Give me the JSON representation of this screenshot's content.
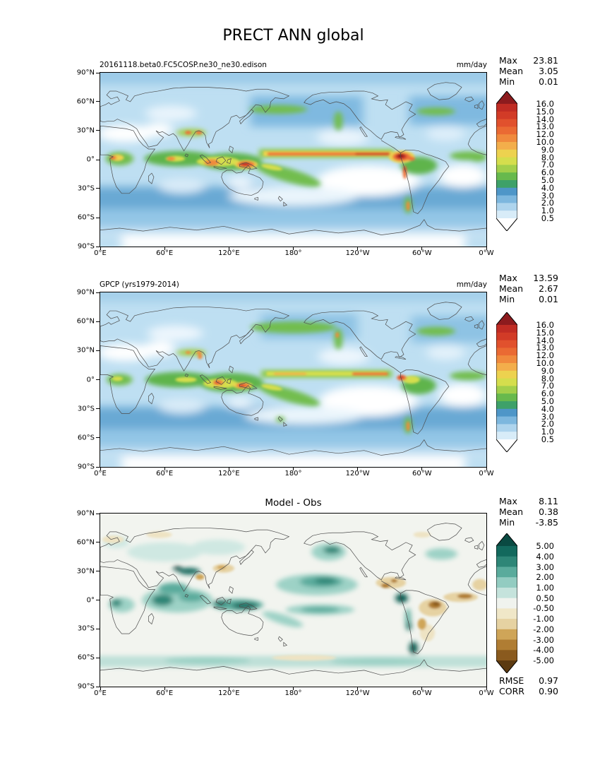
{
  "figure_title": "PRECT ANN global",
  "axes": {
    "lat_ticks": [
      "90°N",
      "60°N",
      "30°N",
      "0°",
      "30°S",
      "60°S",
      "90°S"
    ],
    "lon_ticks": [
      "0°E",
      "60°E",
      "120°E",
      "180°",
      "120°W",
      "60°W",
      "0°W"
    ]
  },
  "panels": [
    {
      "label": "20161118.beta0.FC5COSP.ne30_ne30.edison",
      "units": "mm/day",
      "stats": [
        {
          "label": "Max",
          "value": "23.81"
        },
        {
          "label": "Mean",
          "value": "3.05"
        },
        {
          "label": "Min",
          "value": "0.01"
        }
      ],
      "colorbar": {
        "levels": [
          "16.0",
          "15.0",
          "14.0",
          "13.0",
          "12.0",
          "10.0",
          "9.0",
          "8.0",
          "7.0",
          "6.0",
          "5.0",
          "4.0",
          "3.0",
          "2.0",
          "1.0",
          "0.5"
        ],
        "colors": [
          "#8d1b1e",
          "#c02c24",
          "#d23b27",
          "#e1512d",
          "#ea6a33",
          "#f08a3d",
          "#f3ae4b",
          "#edd24f",
          "#d5de4d",
          "#a3cf4b",
          "#67b94d",
          "#3ea169",
          "#4e96c8",
          "#7db7de",
          "#aed4ed",
          "#d8ecf8",
          "#ffffff"
        ]
      }
    },
    {
      "label": "GPCP (yrs1979-2014)",
      "units": "mm/day",
      "stats": [
        {
          "label": "Max",
          "value": "13.59"
        },
        {
          "label": "Mean",
          "value": "2.67"
        },
        {
          "label": "Min",
          "value": "0.01"
        }
      ],
      "colorbar": {
        "levels": [
          "16.0",
          "15.0",
          "14.0",
          "13.0",
          "12.0",
          "10.0",
          "9.0",
          "8.0",
          "7.0",
          "6.0",
          "5.0",
          "4.0",
          "3.0",
          "2.0",
          "1.0",
          "0.5"
        ],
        "colors": [
          "#8d1b1e",
          "#c02c24",
          "#d23b27",
          "#e1512d",
          "#ea6a33",
          "#f08a3d",
          "#f3ae4b",
          "#edd24f",
          "#d5de4d",
          "#a3cf4b",
          "#67b94d",
          "#3ea169",
          "#4e96c8",
          "#7db7de",
          "#aed4ed",
          "#d8ecf8",
          "#ffffff"
        ]
      }
    },
    {
      "title": "Model - Obs",
      "stats": [
        {
          "label": "Max",
          "value": "8.11"
        },
        {
          "label": "Mean",
          "value": "0.38"
        },
        {
          "label": "Min",
          "value": "-3.85"
        }
      ],
      "metrics": [
        {
          "label": "RMSE",
          "value": "0.97"
        },
        {
          "label": "CORR",
          "value": "0.90"
        }
      ],
      "colorbar": {
        "levels": [
          "5.00",
          "4.00",
          "3.00",
          "2.00",
          "1.00",
          "0.50",
          "-0.50",
          "-1.00",
          "-2.00",
          "-3.00",
          "-4.00",
          "-5.00"
        ],
        "colors": [
          "#0a4a42",
          "#13695d",
          "#2e8677",
          "#5aab9c",
          "#93ccc1",
          "#c5e3dc",
          "#f0f3ee",
          "#f0e7c8",
          "#e6d2a2",
          "#cfa558",
          "#b07d33",
          "#8a5a1e",
          "#5c3a10"
        ]
      }
    }
  ],
  "chart_data": [
    {
      "type": "heatmap",
      "subtype": "filled_contour_global_map",
      "panel": "top",
      "title": "20161118.beta0.FC5COSP.ne30_ne30.edison",
      "variable": "PRECT ANN global",
      "units": "mm/day",
      "projection": "equirectangular, Pacific-centered, lon 0E-360E left to right",
      "x_ticks": [
        "0°E",
        "60°E",
        "120°E",
        "180°",
        "120°W",
        "60°W",
        "0°W"
      ],
      "y_ticks": [
        "90°N",
        "60°N",
        "30°N",
        "0°",
        "30°S",
        "60°S",
        "90°S"
      ],
      "contour_levels": [
        0.5,
        1,
        2,
        3,
        4,
        5,
        6,
        7,
        8,
        9,
        10,
        12,
        13,
        14,
        15,
        16
      ],
      "colormap": "white-blue-green-yellow-orange-red, both ends extended (pointed colorbar)",
      "stats": {
        "Max": 23.81,
        "Mean": 3.05,
        "Min": 0.01
      },
      "notable_features": "Red/dark-red maxima along Pacific ITCZ, over New Guinea/Maritime Continent and NW South America (Colombia); green tropical rain belts in Indian Ocean, SPCZ, Amazon, Congo; white dry zones over subtropical eastern oceans, Sahara, Middle East and Antarctic interior"
    },
    {
      "type": "heatmap",
      "subtype": "filled_contour_global_map",
      "panel": "middle",
      "title": "GPCP (yrs1979-2014)",
      "variable": "PRECT ANN global observations",
      "units": "mm/day",
      "projection": "equirectangular, Pacific-centered, lon 0E-360E left to right",
      "x_ticks": [
        "0°E",
        "60°E",
        "120°E",
        "180°",
        "120°W",
        "60°W",
        "0°W"
      ],
      "y_ticks": [
        "90°N",
        "60°N",
        "30°N",
        "0°",
        "30°S",
        "60°S",
        "90°S"
      ],
      "contour_levels": [
        0.5,
        1,
        2,
        3,
        4,
        5,
        6,
        7,
        8,
        9,
        10,
        12,
        13,
        14,
        15,
        16
      ],
      "colormap": "white-blue-green-yellow-orange-red, both ends extended (pointed colorbar)",
      "stats": {
        "Max": 13.59,
        "Mean": 2.67,
        "Min": 0.01
      },
      "notable_features": "Same pattern as model but smoother and weaker: yellow/orange ITCZ, orange cores over Maritime Continent, small red spot near Colombia, broad green North Pacific storm track"
    },
    {
      "type": "heatmap",
      "subtype": "filled_contour_global_map_difference",
      "panel": "bottom",
      "title": "Model - Obs",
      "units": "mm/day",
      "projection": "equirectangular, Pacific-centered, lon 0E-360E left to right",
      "x_ticks": [
        "0°E",
        "60°E",
        "120°E",
        "180°",
        "120°W",
        "60°W",
        "0°W"
      ],
      "y_ticks": [
        "90°N",
        "60°N",
        "30°N",
        "0°",
        "30°S",
        "60°S",
        "90°S"
      ],
      "contour_levels": [
        -5,
        -4,
        -3,
        -2,
        -1,
        -0.5,
        0.5,
        1,
        2,
        3,
        4,
        5
      ],
      "colormap": "diverging brown (negative) to white to teal/dark-green (positive), both ends extended",
      "stats": {
        "Max": 8.11,
        "Mean": 0.38,
        "Min": -3.85
      },
      "metrics": {
        "RMSE": 0.97,
        "CORR": 0.9
      },
      "notable_features": "Positive (teal) bias over Indian Ocean, Himalaya, Maritime Continent, central Pacific, Andes/Colombia and Southern Ocean; negative (brown) bias over Amazon/east Brazil, tropical Atlantic, Caribbean/Central America and East China"
    }
  ]
}
